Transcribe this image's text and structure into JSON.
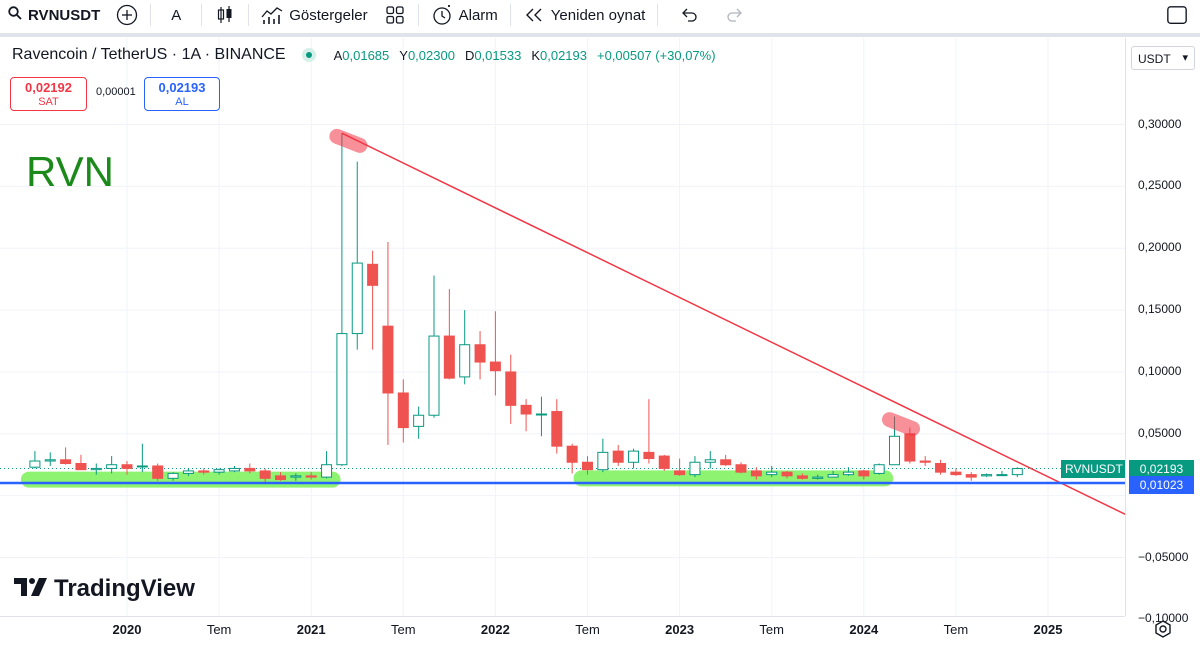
{
  "toolbar": {
    "symbol": "RVNUSDT",
    "interval": "A",
    "indicators_label": "Göstergeler",
    "alarm_label": "Alarm",
    "replay_label": "Yeniden oynat"
  },
  "legend": {
    "title": "Ravencoin / TetherUS · 1A · BINANCE",
    "open_k": "A",
    "open_v": "0,01685",
    "high_k": "Y",
    "high_v": "0,02300",
    "low_k": "D",
    "low_v": "0,01533",
    "close_k": "K",
    "close_v": "0,02193",
    "change": "+0,00507 (+30,07%)"
  },
  "trade": {
    "sell_price": "0,02192",
    "sell_label": "SAT",
    "spread": "0,00001",
    "buy_price": "0,02193",
    "buy_label": "AL"
  },
  "annotation_text": "RVN",
  "logo_text": "TradingView",
  "currency": "USDT",
  "price_tags": {
    "symbol": "RVNUSDT",
    "last": "0,02193",
    "line": "0,01023"
  },
  "colors": {
    "up": "#089981",
    "down": "#ef5350",
    "trendline": "#f23645",
    "support": "#2962ff",
    "highlight": "#7cf25a"
  },
  "chart_data": {
    "type": "candlestick",
    "interval": "1 month",
    "x_range": [
      "2019-05",
      "2025-09"
    ],
    "ylim": [
      -0.105,
      0.32
    ],
    "y_ticks": [
      0.3,
      0.25,
      0.2,
      0.15,
      0.1,
      0.05,
      -0.05,
      -0.1
    ],
    "y_tick_labels": [
      "0,30000",
      "0,25000",
      "0,20000",
      "0,15000",
      "0,10000",
      "0,05000",
      "−0,05000",
      "−0,10000"
    ],
    "x_ticks": [
      {
        "label": "2020",
        "date": "2020-01",
        "bold": true
      },
      {
        "label": "Tem",
        "date": "2020-07",
        "bold": false
      },
      {
        "label": "2021",
        "date": "2021-01",
        "bold": true
      },
      {
        "label": "Tem",
        "date": "2021-07",
        "bold": false
      },
      {
        "label": "2022",
        "date": "2022-01",
        "bold": true
      },
      {
        "label": "Tem",
        "date": "2022-07",
        "bold": false
      },
      {
        "label": "2023",
        "date": "2023-01",
        "bold": true
      },
      {
        "label": "Tem",
        "date": "2023-07",
        "bold": false
      },
      {
        "label": "2024",
        "date": "2024-01",
        "bold": true
      },
      {
        "label": "Tem",
        "date": "2024-07",
        "bold": false
      },
      {
        "label": "2025",
        "date": "2025-01",
        "bold": true
      }
    ],
    "candles": [
      {
        "date": "2019-07",
        "o": 0.023,
        "h": 0.036,
        "l": 0.022,
        "c": 0.028
      },
      {
        "date": "2019-08",
        "o": 0.028,
        "h": 0.035,
        "l": 0.024,
        "c": 0.029
      },
      {
        "date": "2019-09",
        "o": 0.029,
        "h": 0.039,
        "l": 0.025,
        "c": 0.026
      },
      {
        "date": "2019-10",
        "o": 0.026,
        "h": 0.033,
        "l": 0.023,
        "c": 0.021
      },
      {
        "date": "2019-11",
        "o": 0.021,
        "h": 0.026,
        "l": 0.017,
        "c": 0.022
      },
      {
        "date": "2019-12",
        "o": 0.022,
        "h": 0.032,
        "l": 0.018,
        "c": 0.025
      },
      {
        "date": "2020-01",
        "o": 0.025,
        "h": 0.028,
        "l": 0.017,
        "c": 0.022
      },
      {
        "date": "2020-02",
        "o": 0.024,
        "h": 0.042,
        "l": 0.019,
        "c": 0.024
      },
      {
        "date": "2020-03",
        "o": 0.024,
        "h": 0.026,
        "l": 0.012,
        "c": 0.014
      },
      {
        "date": "2020-04",
        "o": 0.014,
        "h": 0.019,
        "l": 0.012,
        "c": 0.018
      },
      {
        "date": "2020-05",
        "o": 0.018,
        "h": 0.022,
        "l": 0.016,
        "c": 0.02
      },
      {
        "date": "2020-06",
        "o": 0.02,
        "h": 0.022,
        "l": 0.017,
        "c": 0.019
      },
      {
        "date": "2020-07",
        "o": 0.019,
        "h": 0.022,
        "l": 0.017,
        "c": 0.021
      },
      {
        "date": "2020-08",
        "o": 0.02,
        "h": 0.024,
        "l": 0.019,
        "c": 0.022
      },
      {
        "date": "2020-09",
        "o": 0.022,
        "h": 0.026,
        "l": 0.018,
        "c": 0.02
      },
      {
        "date": "2020-10",
        "o": 0.02,
        "h": 0.022,
        "l": 0.011,
        "c": 0.014
      },
      {
        "date": "2020-11",
        "o": 0.016,
        "h": 0.019,
        "l": 0.012,
        "c": 0.013
      },
      {
        "date": "2020-12",
        "o": 0.015,
        "h": 0.018,
        "l": 0.012,
        "c": 0.016
      },
      {
        "date": "2021-01",
        "o": 0.016,
        "h": 0.019,
        "l": 0.013,
        "c": 0.015
      },
      {
        "date": "2021-02",
        "o": 0.015,
        "h": 0.036,
        "l": 0.014,
        "c": 0.025
      },
      {
        "date": "2021-03",
        "o": 0.025,
        "h": 0.293,
        "l": 0.024,
        "c": 0.131
      },
      {
        "date": "2021-04",
        "o": 0.131,
        "h": 0.27,
        "l": 0.118,
        "c": 0.188
      },
      {
        "date": "2021-05",
        "o": 0.187,
        "h": 0.198,
        "l": 0.118,
        "c": 0.17
      },
      {
        "date": "2021-06",
        "o": 0.137,
        "h": 0.205,
        "l": 0.041,
        "c": 0.083
      },
      {
        "date": "2021-07",
        "o": 0.083,
        "h": 0.094,
        "l": 0.043,
        "c": 0.055
      },
      {
        "date": "2021-08",
        "o": 0.056,
        "h": 0.072,
        "l": 0.046,
        "c": 0.065
      },
      {
        "date": "2021-09",
        "o": 0.065,
        "h": 0.178,
        "l": 0.063,
        "c": 0.129
      },
      {
        "date": "2021-10",
        "o": 0.129,
        "h": 0.167,
        "l": 0.094,
        "c": 0.095
      },
      {
        "date": "2021-11",
        "o": 0.096,
        "h": 0.15,
        "l": 0.09,
        "c": 0.122
      },
      {
        "date": "2021-12",
        "o": 0.122,
        "h": 0.133,
        "l": 0.094,
        "c": 0.108
      },
      {
        "date": "2022-01",
        "o": 0.108,
        "h": 0.149,
        "l": 0.081,
        "c": 0.101
      },
      {
        "date": "2022-02",
        "o": 0.1,
        "h": 0.114,
        "l": 0.058,
        "c": 0.073
      },
      {
        "date": "2022-03",
        "o": 0.073,
        "h": 0.078,
        "l": 0.052,
        "c": 0.066
      },
      {
        "date": "2022-04",
        "o": 0.066,
        "h": 0.08,
        "l": 0.048,
        "c": 0.066
      },
      {
        "date": "2022-05",
        "o": 0.068,
        "h": 0.078,
        "l": 0.034,
        "c": 0.04
      },
      {
        "date": "2022-06",
        "o": 0.04,
        "h": 0.042,
        "l": 0.018,
        "c": 0.027
      },
      {
        "date": "2022-07",
        "o": 0.027,
        "h": 0.032,
        "l": 0.017,
        "c": 0.021
      },
      {
        "date": "2022-08",
        "o": 0.021,
        "h": 0.046,
        "l": 0.019,
        "c": 0.035
      },
      {
        "date": "2022-09",
        "o": 0.036,
        "h": 0.041,
        "l": 0.024,
        "c": 0.027
      },
      {
        "date": "2022-10",
        "o": 0.027,
        "h": 0.038,
        "l": 0.022,
        "c": 0.036
      },
      {
        "date": "2022-11",
        "o": 0.035,
        "h": 0.078,
        "l": 0.026,
        "c": 0.03
      },
      {
        "date": "2022-12",
        "o": 0.032,
        "h": 0.033,
        "l": 0.02,
        "c": 0.022
      },
      {
        "date": "2023-01",
        "o": 0.02,
        "h": 0.03,
        "l": 0.016,
        "c": 0.017
      },
      {
        "date": "2023-02",
        "o": 0.017,
        "h": 0.032,
        "l": 0.015,
        "c": 0.027
      },
      {
        "date": "2023-03",
        "o": 0.027,
        "h": 0.036,
        "l": 0.022,
        "c": 0.029
      },
      {
        "date": "2023-04",
        "o": 0.029,
        "h": 0.033,
        "l": 0.024,
        "c": 0.025
      },
      {
        "date": "2023-05",
        "o": 0.025,
        "h": 0.027,
        "l": 0.018,
        "c": 0.019
      },
      {
        "date": "2023-06",
        "o": 0.02,
        "h": 0.023,
        "l": 0.013,
        "c": 0.016
      },
      {
        "date": "2023-07",
        "o": 0.017,
        "h": 0.024,
        "l": 0.015,
        "c": 0.019
      },
      {
        "date": "2023-08",
        "o": 0.019,
        "h": 0.02,
        "l": 0.014,
        "c": 0.016
      },
      {
        "date": "2023-09",
        "o": 0.016,
        "h": 0.018,
        "l": 0.013,
        "c": 0.014
      },
      {
        "date": "2023-10",
        "o": 0.014,
        "h": 0.017,
        "l": 0.013,
        "c": 0.015
      },
      {
        "date": "2023-11",
        "o": 0.015,
        "h": 0.02,
        "l": 0.015,
        "c": 0.017
      },
      {
        "date": "2023-12",
        "o": 0.017,
        "h": 0.023,
        "l": 0.016,
        "c": 0.019
      },
      {
        "date": "2024-01",
        "o": 0.02,
        "h": 0.021,
        "l": 0.013,
        "c": 0.016
      },
      {
        "date": "2024-02",
        "o": 0.018,
        "h": 0.026,
        "l": 0.017,
        "c": 0.025
      },
      {
        "date": "2024-03",
        "o": 0.025,
        "h": 0.064,
        "l": 0.025,
        "c": 0.048
      },
      {
        "date": "2024-04",
        "o": 0.05,
        "h": 0.055,
        "l": 0.026,
        "c": 0.028
      },
      {
        "date": "2024-05",
        "o": 0.028,
        "h": 0.032,
        "l": 0.024,
        "c": 0.027
      },
      {
        "date": "2024-06",
        "o": 0.026,
        "h": 0.029,
        "l": 0.017,
        "c": 0.019
      },
      {
        "date": "2024-07",
        "o": 0.019,
        "h": 0.022,
        "l": 0.016,
        "c": 0.017
      },
      {
        "date": "2024-08",
        "o": 0.017,
        "h": 0.019,
        "l": 0.012,
        "c": 0.015
      },
      {
        "date": "2024-09",
        "o": 0.016,
        "h": 0.018,
        "l": 0.015,
        "c": 0.017
      },
      {
        "date": "2024-10",
        "o": 0.017,
        "h": 0.02,
        "l": 0.016,
        "c": 0.017
      },
      {
        "date": "2024-11",
        "o": 0.017,
        "h": 0.023,
        "l": 0.015,
        "c": 0.0219
      }
    ],
    "trendline": {
      "from": {
        "date": "2021-03",
        "price": 0.293
      },
      "to": {
        "date": "2025-09",
        "price": -0.033
      }
    },
    "support_line": 0.01023,
    "current_price_line": 0.02193,
    "highlight_zones": [
      {
        "from": "2019-07",
        "to": "2021-02",
        "price": 0.013
      },
      {
        "from": "2022-07",
        "to": "2024-02",
        "price": 0.014
      }
    ],
    "highlight_markers": [
      {
        "date": "2021-03",
        "price": 0.288
      },
      {
        "date": "2024-03",
        "price": 0.059
      }
    ]
  }
}
